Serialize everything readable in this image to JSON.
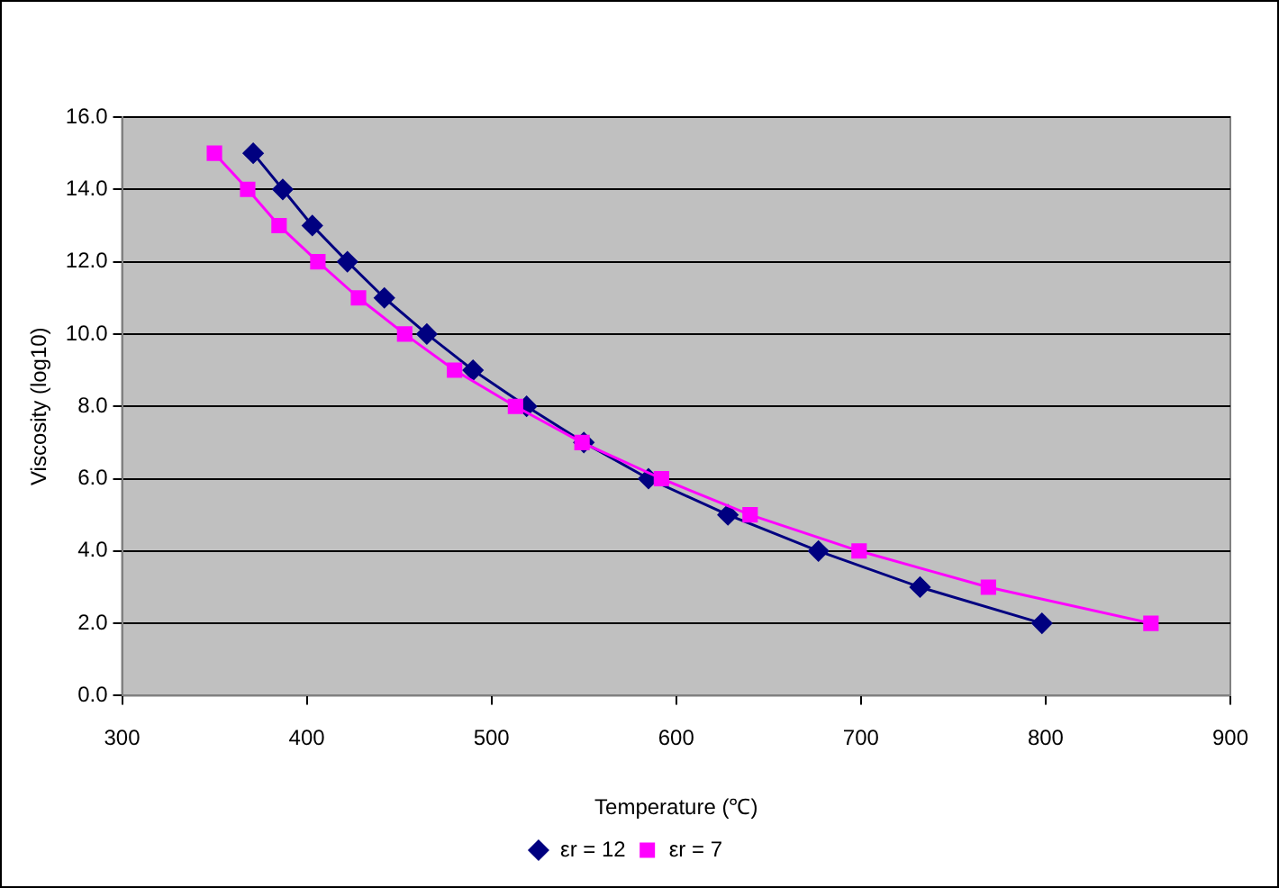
{
  "chart_data": {
    "type": "line",
    "xlabel": "Temperature (℃)",
    "ylabel": "Viscosity (log10)",
    "xlim": [
      300,
      900
    ],
    "xticks": [
      300,
      400,
      500,
      600,
      700,
      800,
      900
    ],
    "ylim": [
      0,
      16
    ],
    "yticks": [
      {
        "value": 0,
        "label": "0.0"
      },
      {
        "value": 2,
        "label": "2.0"
      },
      {
        "value": 4,
        "label": "4.0"
      },
      {
        "value": 6,
        "label": "6.0"
      },
      {
        "value": 8,
        "label": "8.0"
      },
      {
        "value": 10,
        "label": "10.0"
      },
      {
        "value": 12,
        "label": "12.0"
      },
      {
        "value": 14,
        "label": "14.0"
      },
      {
        "value": 16,
        "label": "16.0"
      }
    ],
    "grid": "y",
    "legend": "bottom",
    "line_style": "solid",
    "series": [
      {
        "name": "εr = 12",
        "color": "#000080",
        "marker": "diamond",
        "x": [
          371,
          387,
          403,
          422,
          442,
          465,
          490,
          519,
          550,
          585,
          628,
          677,
          732,
          798
        ],
        "values": [
          15,
          14,
          13,
          12,
          11,
          10,
          9,
          8,
          7,
          6,
          5,
          4,
          3,
          2
        ]
      },
      {
        "name": "εr = 7",
        "color": "#ff00ff",
        "marker": "square",
        "x": [
          350,
          368,
          385,
          406,
          428,
          453,
          480,
          513,
          549,
          592,
          640,
          699,
          769,
          857
        ],
        "values": [
          15,
          14,
          13,
          12,
          11,
          10,
          9,
          8,
          7,
          6,
          5,
          4,
          3,
          2
        ]
      }
    ]
  }
}
